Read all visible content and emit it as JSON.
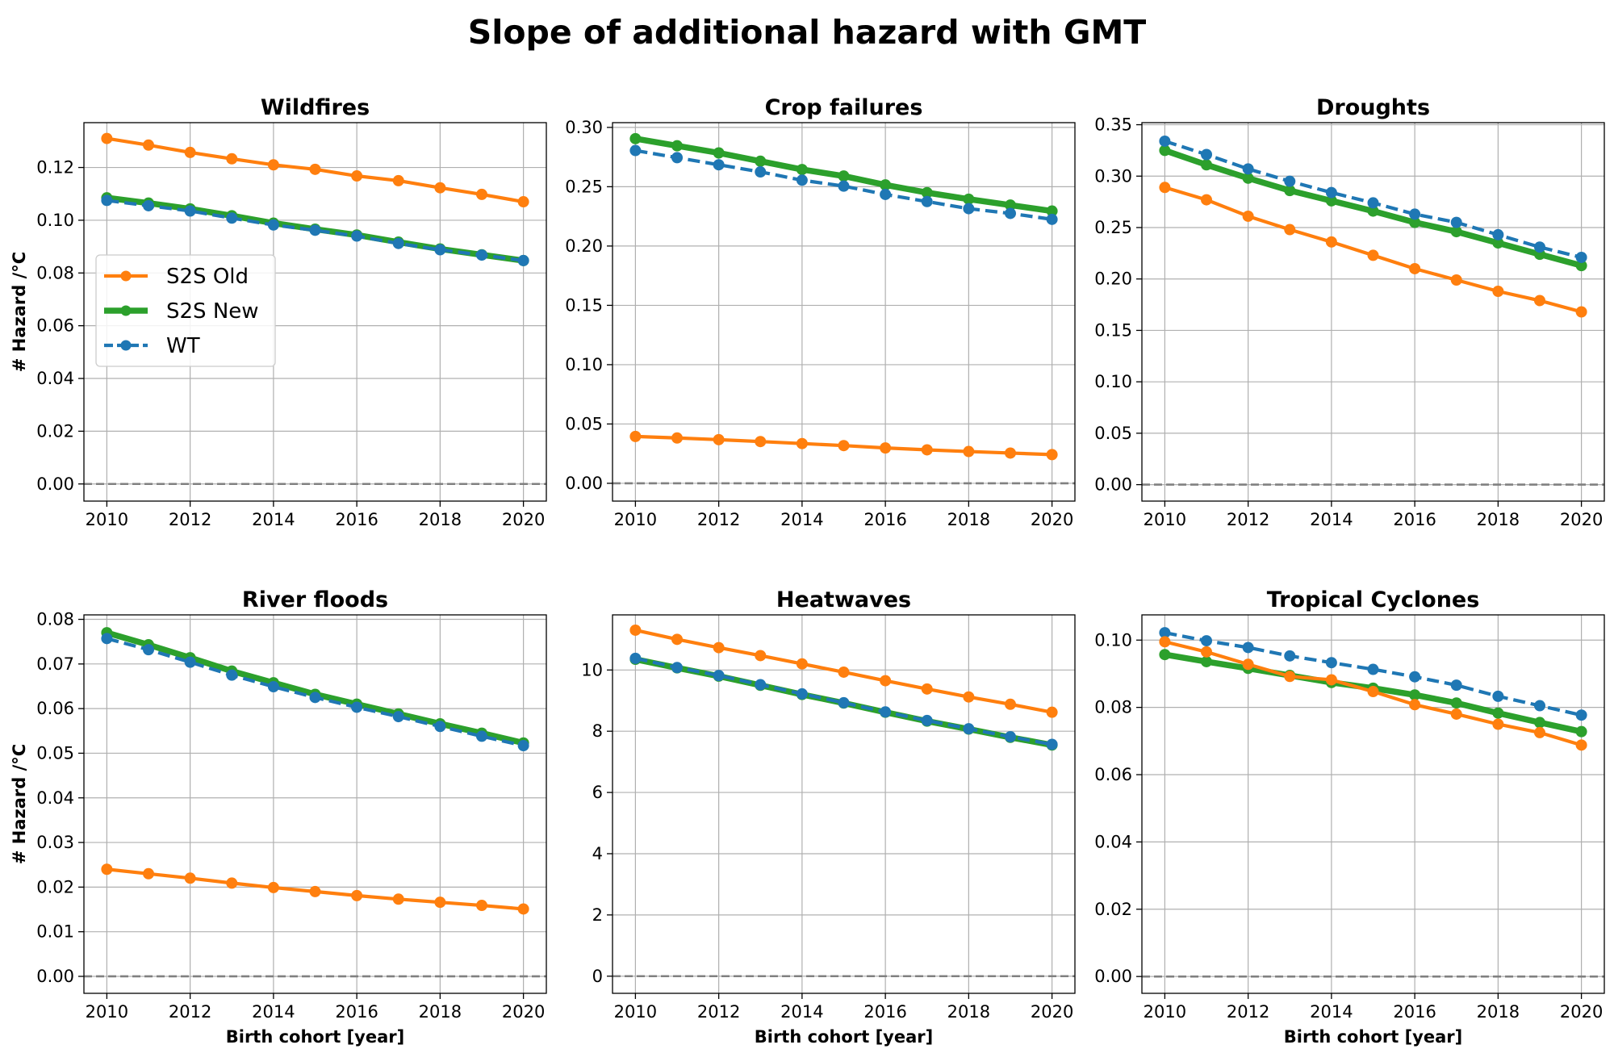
{
  "figure": {
    "title": "Slope of additional hazard with GMT"
  },
  "colors": {
    "s2s_old": "#ff7f0e",
    "s2s_new": "#2ca02c",
    "wt": "#1f77b4",
    "grid": "#b0b0b0",
    "zero": "#808080"
  },
  "legend": {
    "placement": "center-left of first panel",
    "entries": [
      {
        "key": "s2s_old",
        "label": "S2S Old"
      },
      {
        "key": "s2s_new",
        "label": "S2S New"
      },
      {
        "key": "wt",
        "label": "WT"
      }
    ]
  },
  "chart_data": [
    {
      "type": "line",
      "title": "Wildfires",
      "xlabel": "",
      "ylabel": "# Hazard /°C",
      "x": [
        2010,
        2011,
        2012,
        2013,
        2014,
        2015,
        2016,
        2017,
        2018,
        2019,
        2020
      ],
      "xticks": [
        2010,
        2012,
        2014,
        2016,
        2018,
        2020
      ],
      "ylim": [
        -0.0065,
        0.137
      ],
      "yticks": [
        0.0,
        0.02,
        0.04,
        0.06,
        0.08,
        0.1,
        0.12
      ],
      "ytick_labels": [
        "0.00",
        "0.02",
        "0.04",
        "0.06",
        "0.08",
        "0.10",
        "0.12"
      ],
      "zero_line": true,
      "grid": true,
      "series": [
        {
          "name": "S2S Old",
          "key": "s2s_old",
          "values": [
            0.131,
            0.1285,
            0.1257,
            0.1233,
            0.121,
            0.1193,
            0.1168,
            0.115,
            0.1123,
            0.1098,
            0.107
          ]
        },
        {
          "name": "S2S New",
          "key": "s2s_new",
          "values": [
            0.1085,
            0.1065,
            0.1043,
            0.1017,
            0.0989,
            0.0966,
            0.0944,
            0.0917,
            0.0891,
            0.0869,
            0.0847
          ]
        },
        {
          "name": "WT",
          "key": "wt",
          "values": [
            0.1075,
            0.1055,
            0.1035,
            0.1008,
            0.0982,
            0.0962,
            0.094,
            0.0912,
            0.0888,
            0.0868,
            0.0847
          ]
        }
      ]
    },
    {
      "type": "line",
      "title": "Crop failures",
      "xlabel": "",
      "ylabel": "",
      "x": [
        2010,
        2011,
        2012,
        2013,
        2014,
        2015,
        2016,
        2017,
        2018,
        2019,
        2020
      ],
      "xticks": [
        2010,
        2012,
        2014,
        2016,
        2018,
        2020
      ],
      "ylim": [
        -0.015,
        0.304
      ],
      "yticks": [
        0.0,
        0.05,
        0.1,
        0.15,
        0.2,
        0.25,
        0.3
      ],
      "ytick_labels": [
        "0.00",
        "0.05",
        "0.10",
        "0.15",
        "0.20",
        "0.25",
        "0.30"
      ],
      "zero_line": true,
      "grid": true,
      "series": [
        {
          "name": "S2S Old",
          "key": "s2s_old",
          "values": [
            0.0395,
            0.0382,
            0.0368,
            0.0352,
            0.0335,
            0.0318,
            0.0298,
            0.0282,
            0.0268,
            0.0255,
            0.0242
          ]
        },
        {
          "name": "S2S New",
          "key": "s2s_new",
          "values": [
            0.2905,
            0.2845,
            0.2785,
            0.2715,
            0.2645,
            0.259,
            0.2515,
            0.245,
            0.2395,
            0.2345,
            0.2295
          ]
        },
        {
          "name": "WT",
          "key": "wt",
          "values": [
            0.2805,
            0.2745,
            0.2685,
            0.2625,
            0.2555,
            0.2505,
            0.2435,
            0.2375,
            0.2315,
            0.2275,
            0.2225
          ]
        }
      ]
    },
    {
      "type": "line",
      "title": "Droughts",
      "xlabel": "",
      "ylabel": "",
      "x": [
        2010,
        2011,
        2012,
        2013,
        2014,
        2015,
        2016,
        2017,
        2018,
        2019,
        2020
      ],
      "xticks": [
        2010,
        2012,
        2014,
        2016,
        2018,
        2020
      ],
      "ylim": [
        -0.016,
        0.352
      ],
      "yticks": [
        0.0,
        0.05,
        0.1,
        0.15,
        0.2,
        0.25,
        0.3,
        0.35
      ],
      "ytick_labels": [
        "0.00",
        "0.05",
        "0.10",
        "0.15",
        "0.20",
        "0.25",
        "0.30",
        "0.35"
      ],
      "zero_line": true,
      "grid": true,
      "series": [
        {
          "name": "S2S Old",
          "key": "s2s_old",
          "values": [
            0.289,
            0.277,
            0.261,
            0.248,
            0.236,
            0.223,
            0.21,
            0.199,
            0.188,
            0.179,
            0.168
          ]
        },
        {
          "name": "S2S New",
          "key": "s2s_new",
          "values": [
            0.325,
            0.311,
            0.298,
            0.286,
            0.276,
            0.266,
            0.255,
            0.246,
            0.235,
            0.224,
            0.213
          ]
        },
        {
          "name": "WT",
          "key": "wt",
          "values": [
            0.334,
            0.321,
            0.307,
            0.295,
            0.284,
            0.274,
            0.263,
            0.255,
            0.243,
            0.231,
            0.221
          ]
        }
      ]
    },
    {
      "type": "line",
      "title": "River floods",
      "xlabel": "Birth cohort [year]",
      "ylabel": "# Hazard /°C",
      "x": [
        2010,
        2011,
        2012,
        2013,
        2014,
        2015,
        2016,
        2017,
        2018,
        2019,
        2020
      ],
      "xticks": [
        2010,
        2012,
        2014,
        2016,
        2018,
        2020
      ],
      "ylim": [
        -0.0038,
        0.081
      ],
      "yticks": [
        0.0,
        0.01,
        0.02,
        0.03,
        0.04,
        0.05,
        0.06,
        0.07,
        0.08
      ],
      "ytick_labels": [
        "0.00",
        "0.01",
        "0.02",
        "0.03",
        "0.04",
        "0.05",
        "0.06",
        "0.07",
        "0.08"
      ],
      "zero_line": true,
      "grid": true,
      "series": [
        {
          "name": "S2S Old",
          "key": "s2s_old",
          "values": [
            0.024,
            0.023,
            0.022,
            0.0209,
            0.0199,
            0.019,
            0.0181,
            0.0173,
            0.0166,
            0.0159,
            0.0151
          ]
        },
        {
          "name": "S2S New",
          "key": "s2s_new",
          "values": [
            0.077,
            0.0743,
            0.0714,
            0.0684,
            0.0658,
            0.0632,
            0.061,
            0.0588,
            0.0566,
            0.0545,
            0.0523
          ]
        },
        {
          "name": "WT",
          "key": "wt",
          "values": [
            0.0757,
            0.0732,
            0.0704,
            0.0675,
            0.0649,
            0.0625,
            0.0603,
            0.0582,
            0.056,
            0.0538,
            0.0517
          ]
        }
      ]
    },
    {
      "type": "line",
      "title": "Heatwaves",
      "xlabel": "Birth cohort [year]",
      "ylabel": "",
      "x": [
        2010,
        2011,
        2012,
        2013,
        2014,
        2015,
        2016,
        2017,
        2018,
        2019,
        2020
      ],
      "xticks": [
        2010,
        2012,
        2014,
        2016,
        2018,
        2020
      ],
      "ylim": [
        -0.56,
        11.8
      ],
      "yticks": [
        0,
        2,
        4,
        6,
        8,
        10
      ],
      "ytick_labels": [
        "0",
        "2",
        "4",
        "6",
        "8",
        "10"
      ],
      "zero_line": true,
      "grid": true,
      "series": [
        {
          "name": "S2S Old",
          "key": "s2s_old",
          "values": [
            11.3,
            11.0,
            10.73,
            10.47,
            10.2,
            9.93,
            9.65,
            9.38,
            9.12,
            8.88,
            8.62
          ]
        },
        {
          "name": "S2S New",
          "key": "s2s_new",
          "values": [
            10.35,
            10.07,
            9.8,
            9.5,
            9.2,
            8.92,
            8.62,
            8.33,
            8.07,
            7.8,
            7.55
          ]
        },
        {
          "name": "WT",
          "key": "wt",
          "values": [
            10.38,
            10.08,
            9.82,
            9.52,
            9.22,
            8.93,
            8.63,
            8.35,
            8.08,
            7.82,
            7.57
          ]
        }
      ]
    },
    {
      "type": "line",
      "title": "Tropical Cyclones",
      "xlabel": "Birth cohort [year]",
      "ylabel": "",
      "x": [
        2010,
        2011,
        2012,
        2013,
        2014,
        2015,
        2016,
        2017,
        2018,
        2019,
        2020
      ],
      "xticks": [
        2010,
        2012,
        2014,
        2016,
        2018,
        2020
      ],
      "ylim": [
        -0.005,
        0.1075
      ],
      "yticks": [
        0.0,
        0.02,
        0.04,
        0.06,
        0.08,
        0.1
      ],
      "ytick_labels": [
        "0.00",
        "0.02",
        "0.04",
        "0.06",
        "0.08",
        "0.10"
      ],
      "zero_line": true,
      "grid": true,
      "series": [
        {
          "name": "S2S Old",
          "key": "s2s_old",
          "values": [
            0.0995,
            0.0965,
            0.0928,
            0.0892,
            0.0882,
            0.0847,
            0.0808,
            0.078,
            0.075,
            0.0725,
            0.0688
          ]
        },
        {
          "name": "S2S New",
          "key": "s2s_new",
          "values": [
            0.0957,
            0.0936,
            0.0916,
            0.0895,
            0.0874,
            0.0857,
            0.0837,
            0.0813,
            0.0783,
            0.0755,
            0.0728
          ]
        },
        {
          "name": "WT",
          "key": "wt",
          "values": [
            0.1022,
            0.0998,
            0.0978,
            0.0953,
            0.0933,
            0.0913,
            0.0891,
            0.0866,
            0.0833,
            0.0805,
            0.0777
          ]
        }
      ]
    }
  ]
}
